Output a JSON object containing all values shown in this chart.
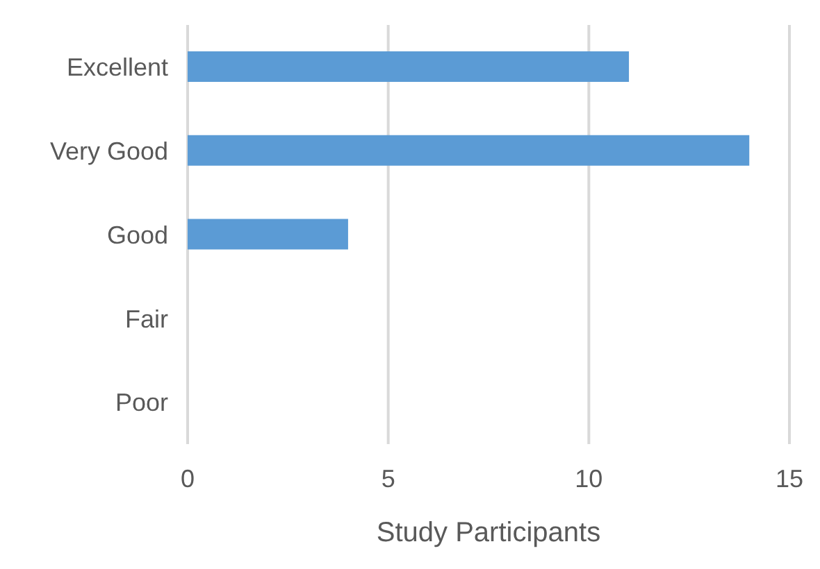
{
  "chart_data": {
    "type": "bar",
    "orientation": "horizontal",
    "xlabel": "Study Participants",
    "categories": [
      "Excellent",
      "Very Good",
      "Good",
      "Fair",
      "Poor"
    ],
    "values": [
      11,
      14,
      4,
      0,
      0
    ],
    "color": "#5b9bd5",
    "xlim": [
      0,
      15
    ],
    "xticks": [
      0,
      5,
      10,
      15
    ],
    "grid": "x"
  }
}
